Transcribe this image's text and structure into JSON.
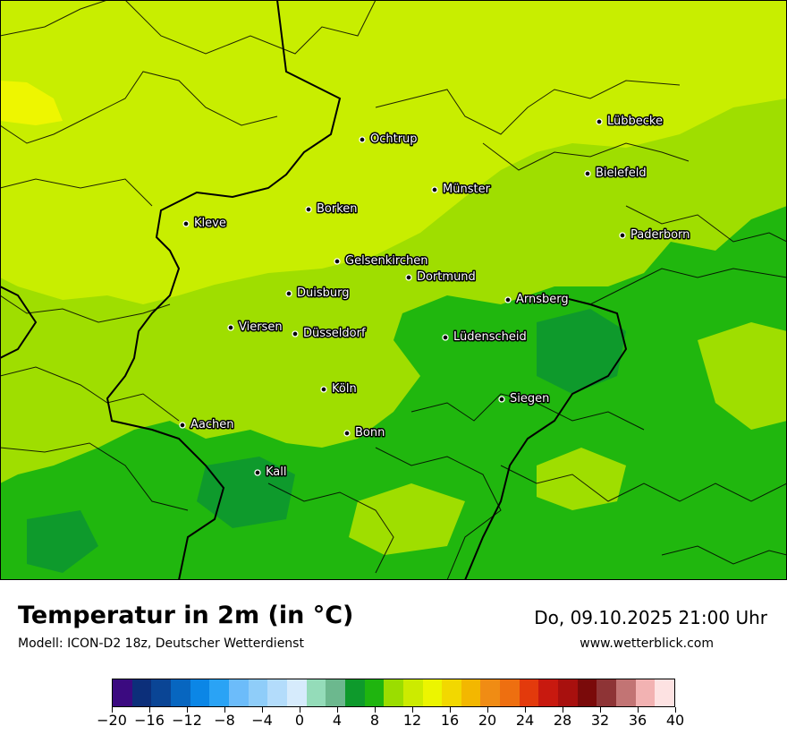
{
  "header": {
    "title": "Temperatur in 2m (in °C)",
    "model": "Modell: ICON-D2 18z, Deutscher Wetterdienst",
    "datetime": "Do, 09.10.2025 21:00 Uhr",
    "website": "www.wetterblick.com"
  },
  "map": {
    "cities": [
      {
        "name": "Lübbecke"
      },
      {
        "name": "Ochtrup"
      },
      {
        "name": "Bielefeld"
      },
      {
        "name": "Münster"
      },
      {
        "name": "Borken"
      },
      {
        "name": "Kleve"
      },
      {
        "name": "Paderborn"
      },
      {
        "name": "Gelsenkirchen"
      },
      {
        "name": "Dortmund"
      },
      {
        "name": "Duisburg"
      },
      {
        "name": "Arnsberg"
      },
      {
        "name": "Viersen"
      },
      {
        "name": "Düsseldorf"
      },
      {
        "name": "Lüdenscheid"
      },
      {
        "name": "Köln"
      },
      {
        "name": "Siegen"
      },
      {
        "name": "Aachen"
      },
      {
        "name": "Bonn"
      },
      {
        "name": "Kall"
      }
    ]
  },
  "legend": {
    "unit": "°C",
    "min": -20,
    "max": 40,
    "step": 2,
    "tick_labels": [
      "−20",
      "−16",
      "−12",
      "−8",
      "−4",
      "0",
      "4",
      "8",
      "12",
      "16",
      "20",
      "24",
      "28",
      "32",
      "36",
      "40"
    ],
    "colors": [
      "#3b0a80",
      "#0c2f7a",
      "#0a4595",
      "#0766c0",
      "#0b86e6",
      "#2aa3f5",
      "#6cbcfa",
      "#8fcdf9",
      "#b3dcfb",
      "#d6ebfc",
      "#94dcb9",
      "#6cb88e",
      "#0e9a2c",
      "#1fb50f",
      "#9bdd00",
      "#cceb00",
      "#ecf500",
      "#f2d800",
      "#f3b700",
      "#f08c14",
      "#ee6f10",
      "#e33a0c",
      "#c8190f",
      "#a8100e",
      "#7a0a0a",
      "#8e3436",
      "#c27474",
      "#f2b2b2",
      "#fde2e2"
    ]
  }
}
